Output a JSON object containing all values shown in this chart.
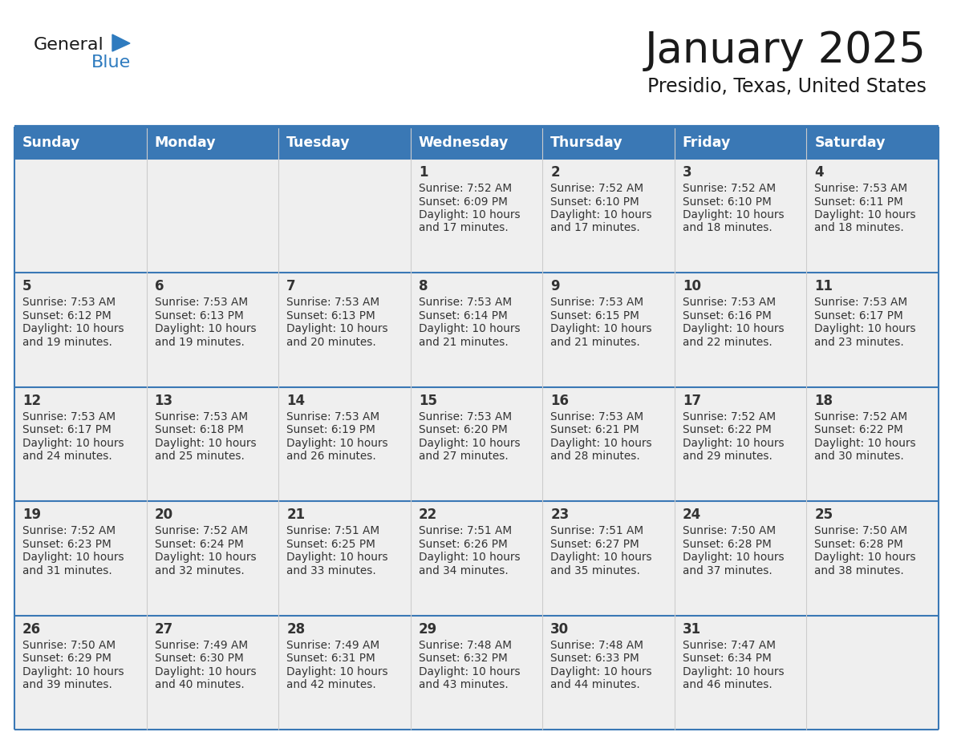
{
  "title": "January 2025",
  "subtitle": "Presidio, Texas, United States",
  "days_of_week": [
    "Sunday",
    "Monday",
    "Tuesday",
    "Wednesday",
    "Thursday",
    "Friday",
    "Saturday"
  ],
  "header_bg": "#3a78b5",
  "header_text": "#ffffff",
  "row_bg": "#efefef",
  "grid_line_color": "#3a78b5",
  "cell_divider_color": "#cccccc",
  "text_color": "#333333",
  "title_color": "#1a1a1a",
  "subtitle_color": "#1a1a1a",
  "logo_general_color": "#1a1a1a",
  "logo_blue_color": "#2e7bbf",
  "calendar_data": [
    [
      null,
      null,
      null,
      {
        "day": 1,
        "sunrise": "7:52 AM",
        "sunset": "6:09 PM",
        "daylight": "10 hours and 17 minutes."
      },
      {
        "day": 2,
        "sunrise": "7:52 AM",
        "sunset": "6:10 PM",
        "daylight": "10 hours and 17 minutes."
      },
      {
        "day": 3,
        "sunrise": "7:52 AM",
        "sunset": "6:10 PM",
        "daylight": "10 hours and 18 minutes."
      },
      {
        "day": 4,
        "sunrise": "7:53 AM",
        "sunset": "6:11 PM",
        "daylight": "10 hours and 18 minutes."
      }
    ],
    [
      {
        "day": 5,
        "sunrise": "7:53 AM",
        "sunset": "6:12 PM",
        "daylight": "10 hours and 19 minutes."
      },
      {
        "day": 6,
        "sunrise": "7:53 AM",
        "sunset": "6:13 PM",
        "daylight": "10 hours and 19 minutes."
      },
      {
        "day": 7,
        "sunrise": "7:53 AM",
        "sunset": "6:13 PM",
        "daylight": "10 hours and 20 minutes."
      },
      {
        "day": 8,
        "sunrise": "7:53 AM",
        "sunset": "6:14 PM",
        "daylight": "10 hours and 21 minutes."
      },
      {
        "day": 9,
        "sunrise": "7:53 AM",
        "sunset": "6:15 PM",
        "daylight": "10 hours and 21 minutes."
      },
      {
        "day": 10,
        "sunrise": "7:53 AM",
        "sunset": "6:16 PM",
        "daylight": "10 hours and 22 minutes."
      },
      {
        "day": 11,
        "sunrise": "7:53 AM",
        "sunset": "6:17 PM",
        "daylight": "10 hours and 23 minutes."
      }
    ],
    [
      {
        "day": 12,
        "sunrise": "7:53 AM",
        "sunset": "6:17 PM",
        "daylight": "10 hours and 24 minutes."
      },
      {
        "day": 13,
        "sunrise": "7:53 AM",
        "sunset": "6:18 PM",
        "daylight": "10 hours and 25 minutes."
      },
      {
        "day": 14,
        "sunrise": "7:53 AM",
        "sunset": "6:19 PM",
        "daylight": "10 hours and 26 minutes."
      },
      {
        "day": 15,
        "sunrise": "7:53 AM",
        "sunset": "6:20 PM",
        "daylight": "10 hours and 27 minutes."
      },
      {
        "day": 16,
        "sunrise": "7:53 AM",
        "sunset": "6:21 PM",
        "daylight": "10 hours and 28 minutes."
      },
      {
        "day": 17,
        "sunrise": "7:52 AM",
        "sunset": "6:22 PM",
        "daylight": "10 hours and 29 minutes."
      },
      {
        "day": 18,
        "sunrise": "7:52 AM",
        "sunset": "6:22 PM",
        "daylight": "10 hours and 30 minutes."
      }
    ],
    [
      {
        "day": 19,
        "sunrise": "7:52 AM",
        "sunset": "6:23 PM",
        "daylight": "10 hours and 31 minutes."
      },
      {
        "day": 20,
        "sunrise": "7:52 AM",
        "sunset": "6:24 PM",
        "daylight": "10 hours and 32 minutes."
      },
      {
        "day": 21,
        "sunrise": "7:51 AM",
        "sunset": "6:25 PM",
        "daylight": "10 hours and 33 minutes."
      },
      {
        "day": 22,
        "sunrise": "7:51 AM",
        "sunset": "6:26 PM",
        "daylight": "10 hours and 34 minutes."
      },
      {
        "day": 23,
        "sunrise": "7:51 AM",
        "sunset": "6:27 PM",
        "daylight": "10 hours and 35 minutes."
      },
      {
        "day": 24,
        "sunrise": "7:50 AM",
        "sunset": "6:28 PM",
        "daylight": "10 hours and 37 minutes."
      },
      {
        "day": 25,
        "sunrise": "7:50 AM",
        "sunset": "6:28 PM",
        "daylight": "10 hours and 38 minutes."
      }
    ],
    [
      {
        "day": 26,
        "sunrise": "7:50 AM",
        "sunset": "6:29 PM",
        "daylight": "10 hours and 39 minutes."
      },
      {
        "day": 27,
        "sunrise": "7:49 AM",
        "sunset": "6:30 PM",
        "daylight": "10 hours and 40 minutes."
      },
      {
        "day": 28,
        "sunrise": "7:49 AM",
        "sunset": "6:31 PM",
        "daylight": "10 hours and 42 minutes."
      },
      {
        "day": 29,
        "sunrise": "7:48 AM",
        "sunset": "6:32 PM",
        "daylight": "10 hours and 43 minutes."
      },
      {
        "day": 30,
        "sunrise": "7:48 AM",
        "sunset": "6:33 PM",
        "daylight": "10 hours and 44 minutes."
      },
      {
        "day": 31,
        "sunrise": "7:47 AM",
        "sunset": "6:34 PM",
        "daylight": "10 hours and 46 minutes."
      },
      null
    ]
  ]
}
